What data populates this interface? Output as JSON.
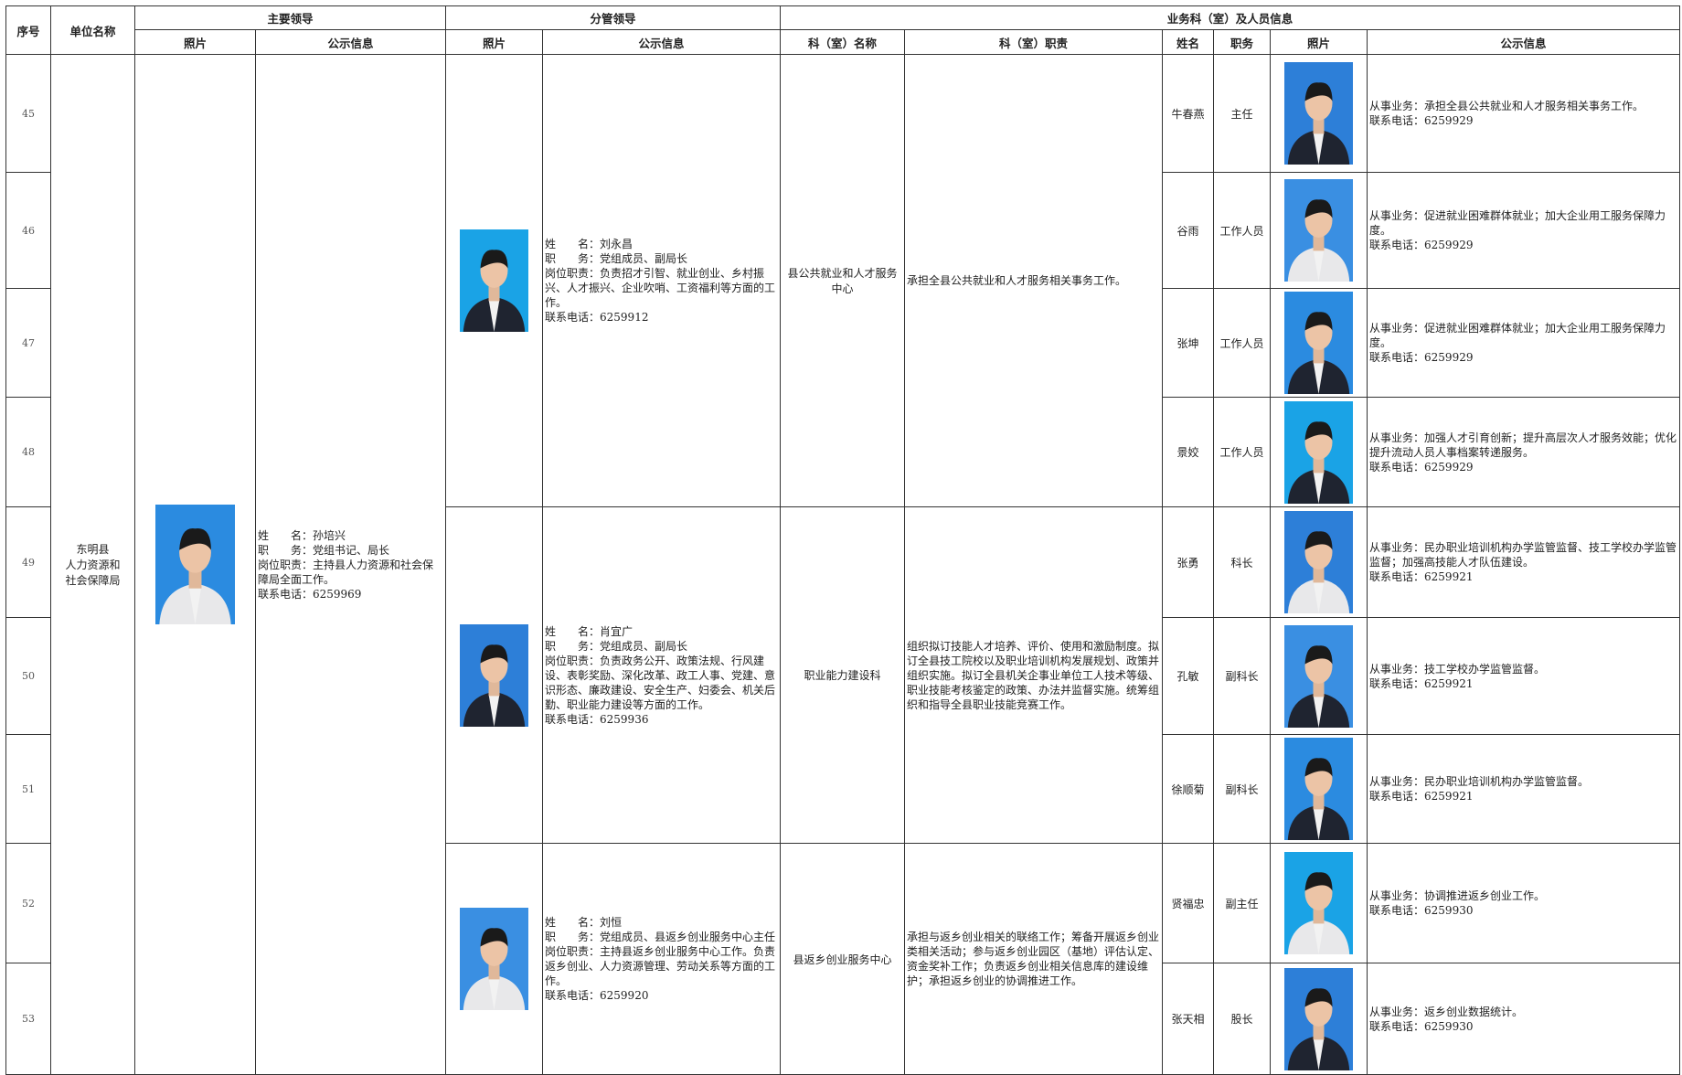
{
  "header": {
    "row1": [
      "序号",
      "单位名称",
      "主要领导",
      "分管领导",
      "业务科（室）及人员信息"
    ],
    "row2": [
      "照片",
      "公示信息",
      "照片",
      "公示信息",
      "科（室）名称",
      "科（室）职责",
      "姓名",
      "职务",
      "照片",
      "公示信息"
    ]
  },
  "unit": {
    "lines": [
      "东明县",
      "人力资源和",
      "社会保障局"
    ]
  },
  "leader": {
    "lines": [
      "姓　　名：孙培兴",
      "职　　务：党组书记、局长",
      "岗位职责：主持县人力资源和社会保障局全面工作。",
      "联系电话：6259969"
    ]
  },
  "groups": [
    {
      "deputy": {
        "lines": [
          "姓　　名：刘永昌",
          "职　　务：党组成员、副局长",
          "岗位职责：负责招才引智、就业创业、乡村振兴、人才振兴、企业吹哨、工资福利等方面的工作。",
          "联系电话：6259912"
        ]
      },
      "section": {
        "name": "县公共就业和人才服务中心",
        "duty": "承担全县公共就业和人才服务相关事务工作。"
      },
      "staff": [
        {
          "no": 45,
          "name": "牛春燕",
          "title": "主任",
          "info": [
            "从事业务：承担全县公共就业和人才服务相关事务工作。",
            "联系电话：6259929"
          ]
        },
        {
          "no": 46,
          "name": "谷雨",
          "title": "工作人员",
          "info": [
            "从事业务：促进就业困难群体就业；加大企业用工服务保障力度。",
            "联系电话：6259929"
          ]
        },
        {
          "no": 47,
          "name": "张坤",
          "title": "工作人员",
          "info": [
            "从事业务：促进就业困难群体就业；加大企业用工服务保障力度。",
            "联系电话：6259929"
          ]
        },
        {
          "no": 48,
          "name": "景姣",
          "title": "工作人员",
          "info": [
            "从事业务：加强人才引育创新；提升高层次人才服务效能；优化提升流动人员人事档案转递服务。",
            "联系电话：6259929"
          ]
        }
      ]
    },
    {
      "deputy": {
        "lines": [
          "姓　　名：肖宜广",
          "职　　务：党组成员、副局长",
          "岗位职责：负责政务公开、政策法规、行风建设、表彰奖励、深化改革、政工人事、党建、意识形态、廉政建设、安全生产、妇委会、机关后勤、职业能力建设等方面的工作。",
          "联系电话：6259936"
        ]
      },
      "section": {
        "name": "职业能力建设科",
        "duty": "组织拟订技能人才培养、评价、使用和激励制度。拟订全县技工院校以及职业培训机构发展规划、政策并组织实施。拟订全县机关企事业单位工人技术等级、职业技能考核鉴定的政策、办法并监督实施。统筹组织和指导全县职业技能竞赛工作。"
      },
      "staff": [
        {
          "no": 49,
          "name": "张勇",
          "title": "科长",
          "info": [
            "从事业务：民办职业培训机构办学监管监督、技工学校办学监管监督；加强高技能人才队伍建设。",
            "联系电话：6259921"
          ]
        },
        {
          "no": 50,
          "name": "孔敏",
          "title": "副科长",
          "info": [
            "从事业务：技工学校办学监管监督。",
            "联系电话：6259921"
          ]
        },
        {
          "no": 51,
          "name": "徐顺菊",
          "title": "副科长",
          "info": [
            "从事业务：民办职业培训机构办学监管监督。",
            "联系电话：6259921"
          ]
        }
      ]
    },
    {
      "deputy": {
        "lines": [
          "姓　　名：刘恒",
          "职　　务：党组成员、县返乡创业服务中心主任",
          "岗位职责：主持县返乡创业服务中心工作。负责返乡创业、人力资源管理、劳动关系等方面的工作。",
          "联系电话：6259920"
        ]
      },
      "section": {
        "name": "县返乡创业服务中心",
        "duty": "承担与返乡创业相关的联络工作；筹备开展返乡创业类相关活动；参与返乡创业园区（基地）评估认定、资金奖补工作；负责返乡创业相关信息库的建设维护；承担返乡创业的协调推进工作。"
      },
      "staff": [
        {
          "no": 52,
          "name": "贤福忠",
          "title": "副主任",
          "info": [
            "从事业务：协调推进返乡创业工作。",
            "联系电话：6259930"
          ]
        },
        {
          "no": 53,
          "name": "张天相",
          "title": "股长",
          "info": [
            "从事业务：返乡创业数据统计。",
            "联系电话：6259930"
          ]
        }
      ]
    }
  ]
}
